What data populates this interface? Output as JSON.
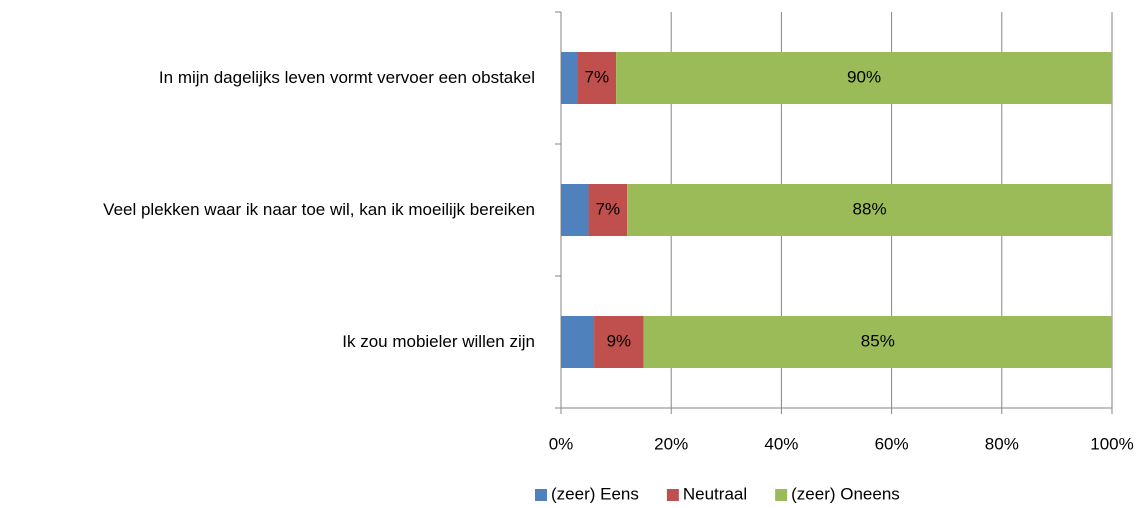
{
  "chart_data": {
    "type": "stacked-barh",
    "categories": [
      "In mijn dagelijks leven vormt vervoer een obstakel",
      "Veel plekken waar ik naar toe wil, kan ik moeilijk bereiken",
      "Ik zou mobieler willen zijn"
    ],
    "series": [
      {
        "name": "(zeer) Eens",
        "color": "#4f81bd",
        "values": [
          3,
          5,
          6
        ]
      },
      {
        "name": "Neutraal",
        "color": "#c0504d",
        "values": [
          7,
          7,
          9
        ],
        "value_labels": [
          "7%",
          "7%",
          "9%"
        ]
      },
      {
        "name": "(zeer) Oneens",
        "color": "#9bbb59",
        "values": [
          90,
          88,
          85
        ],
        "value_labels": [
          "90%",
          "88%",
          "85%"
        ]
      }
    ],
    "xlim": [
      0,
      100
    ],
    "xticks": [
      {
        "value": 0,
        "label": "0%"
      },
      {
        "value": 20,
        "label": "20%"
      },
      {
        "value": 40,
        "label": "40%"
      },
      {
        "value": 60,
        "label": "60%"
      },
      {
        "value": 80,
        "label": "80%"
      },
      {
        "value": 100,
        "label": "100%"
      }
    ],
    "grid": true,
    "legend": "bottom"
  }
}
